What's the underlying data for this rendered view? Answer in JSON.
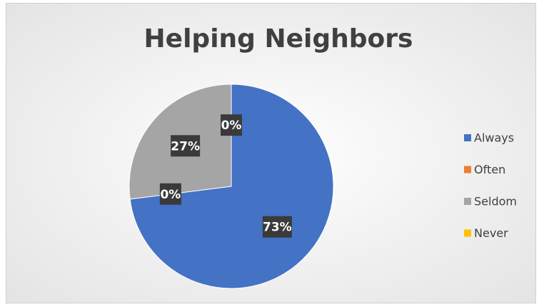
{
  "chart_data": {
    "type": "pie",
    "title": "Helping Neighbors",
    "categories": [
      "Always",
      "Often",
      "Seldom",
      "Never"
    ],
    "values": [
      73,
      0,
      27,
      0
    ],
    "value_labels": [
      "73%",
      "0%",
      "27%",
      "0%"
    ],
    "colors": [
      "#4472c4",
      "#ed7d31",
      "#a5a5a5",
      "#ffc000"
    ],
    "legend": "right"
  }
}
